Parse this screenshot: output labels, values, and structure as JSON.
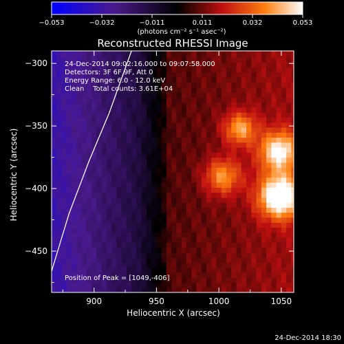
{
  "chart_data": {
    "type": "heatmap",
    "title": "Reconstructed RHESSI Image",
    "xlabel": "Heliocentric X (arcsec)",
    "ylabel": "Heliocentric Y (arcsec)",
    "xlim": [
      866,
      1060
    ],
    "ylim": [
      -483,
      -290
    ],
    "xticks": [
      900,
      950,
      1000,
      1050
    ],
    "yticks": [
      -300,
      -350,
      -400,
      -450
    ],
    "colorbar": {
      "min": -0.053,
      "max": 0.053,
      "tick_labels": [
        "-0.053",
        "-0.032",
        "-0.011",
        "0.011",
        "0.032",
        "0.053"
      ],
      "label": "(photons cm⁻² s⁻¹ asec⁻²)",
      "colors": [
        "#0000ff",
        "#4a1a8c",
        "#000000",
        "#c01010",
        "#ff8010",
        "#ffffff"
      ]
    },
    "info": [
      "24-Dec-2014 09:02:16.000 to 09:07:58.000",
      "Detectors: 3F 6F 9F, Att 0",
      "Energy Range: 6.0 - 12.0 keV",
      "Clean    Total counts: 3.61E+04"
    ],
    "peak_annotation": "Position of Peak = [1049,-406]",
    "peak": {
      "x": 1049,
      "y": -406,
      "value": 0.053
    },
    "sources": [
      {
        "x": 1049,
        "y": -406,
        "sigma": 12,
        "amp": 0.052
      },
      {
        "x": 1048,
        "y": -370,
        "sigma": 11,
        "amp": 0.04
      },
      {
        "x": 1017,
        "y": -352,
        "sigma": 9,
        "amp": 0.03
      },
      {
        "x": 1003,
        "y": -390,
        "sigma": 10,
        "amp": 0.028
      }
    ],
    "limb_curve": [
      {
        "x": 866,
        "y": -466
      },
      {
        "x": 880,
        "y": -420
      },
      {
        "x": 896,
        "y": -378
      },
      {
        "x": 912,
        "y": -340
      },
      {
        "x": 930,
        "y": -290
      }
    ],
    "timestamp": "24-Dec-2014 18:30"
  }
}
